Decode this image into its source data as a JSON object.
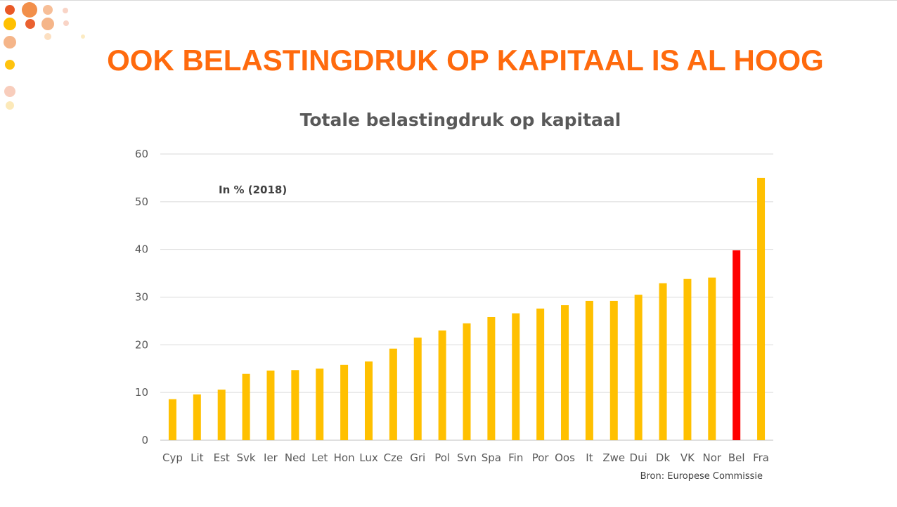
{
  "slide": {
    "title": "OOK BELASTINGDRUK OP KAPITAAL IS AL HOOG",
    "source": "Bron: Europese Commissie",
    "colors": {
      "title": "#ff6a0d",
      "bar": "#ffc000",
      "highlight": "#ff0000"
    }
  },
  "chart_data": {
    "type": "bar",
    "title": "Totale belastingdruk op kapitaal",
    "annotation": "In % (2018)",
    "xlabel": "",
    "ylabel": "",
    "ylim": [
      0,
      60
    ],
    "yticks": [
      0,
      10,
      20,
      30,
      40,
      50,
      60
    ],
    "grid": true,
    "categories": [
      "Cyp",
      "Lit",
      "Est",
      "Svk",
      "Ier",
      "Ned",
      "Let",
      "Hon",
      "Lux",
      "Cze",
      "Gri",
      "Pol",
      "Svn",
      "Spa",
      "Fin",
      "Por",
      "Oos",
      "It",
      "Zwe",
      "Dui",
      "Dk",
      "VK",
      "Nor",
      "Bel",
      "Fra"
    ],
    "values": [
      8.6,
      9.6,
      10.6,
      13.9,
      14.6,
      14.7,
      15.0,
      15.8,
      16.5,
      19.2,
      21.5,
      23.0,
      24.5,
      25.8,
      26.6,
      27.6,
      28.3,
      29.2,
      29.2,
      30.5,
      32.9,
      33.8,
      34.1,
      39.8,
      55.0
    ],
    "highlight_category": "Bel"
  }
}
